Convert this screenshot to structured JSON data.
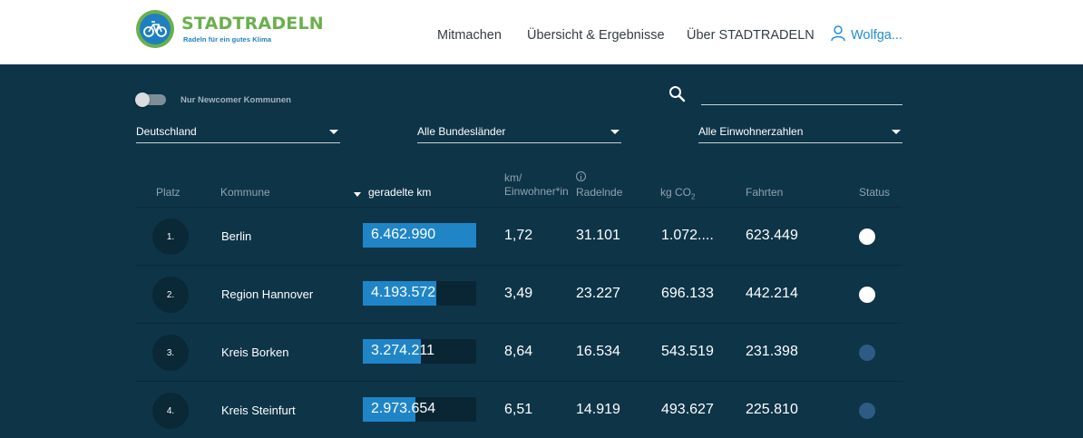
{
  "header": {
    "brand": "STADTRADELN",
    "tagline": "Radeln für ein gutes Klima",
    "nav": [
      "Mitmachen",
      "Übersicht & Ergebnisse",
      "Über STADTRADELN"
    ],
    "user": "Wolfga..."
  },
  "filters": {
    "newcomer_toggle_label": "Nur Newcomer Kommunen",
    "newcomer_toggle_on": false,
    "search_value": "",
    "country": "Deutschland",
    "state": "Alle Bundesländer",
    "population": "Alle Einwohnerzahlen"
  },
  "table": {
    "headers": {
      "rank": "Platz",
      "name": "Kommune",
      "km": "geradelte km",
      "km_per_resident_1": "km/",
      "km_per_resident_2": "Einwohner*in",
      "riders": "Radelnde",
      "co2": "kg CO",
      "co2_sub": "2",
      "trips": "Fahrten",
      "status": "Status"
    },
    "rows": [
      {
        "rank": "1.",
        "name": "Berlin",
        "km": "6.462.990",
        "km_share": 1.0,
        "km_per_resident": "1,72",
        "riders": "31.101",
        "co2": "1.072....",
        "trips": "623.449",
        "status_color": "#ffffff"
      },
      {
        "rank": "2.",
        "name": "Region Hannover",
        "km": "4.193.572",
        "km_share": 0.65,
        "km_per_resident": "3,49",
        "riders": "23.227",
        "co2": "696.133",
        "trips": "442.214",
        "status_color": "#ffffff"
      },
      {
        "rank": "3.",
        "name": "Kreis Borken",
        "km": "3.274.211",
        "km_share": 0.51,
        "km_per_resident": "8,64",
        "riders": "16.534",
        "co2": "543.519",
        "trips": "231.398",
        "status_color": "#2e5b84"
      },
      {
        "rank": "4.",
        "name": "Kreis Steinfurt",
        "km": "2.973.654",
        "km_share": 0.46,
        "km_per_resident": "6,51",
        "riders": "14.919",
        "co2": "493.627",
        "trips": "225.810",
        "status_color": "#2e5b84"
      }
    ]
  }
}
